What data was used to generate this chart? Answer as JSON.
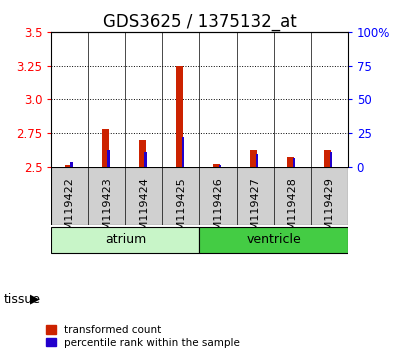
{
  "title": "GDS3625 / 1375132_at",
  "samples": [
    "GSM119422",
    "GSM119423",
    "GSM119424",
    "GSM119425",
    "GSM119426",
    "GSM119427",
    "GSM119428",
    "GSM119429"
  ],
  "red_values": [
    2.51,
    2.78,
    2.7,
    3.25,
    2.52,
    2.62,
    2.57,
    2.62
  ],
  "blue_values": [
    2.53,
    2.62,
    2.61,
    2.72,
    2.51,
    2.59,
    2.56,
    2.61
  ],
  "red_base": 2.5,
  "ylim": [
    2.5,
    3.5
  ],
  "yticks_left": [
    2.5,
    2.75,
    3.0,
    3.25,
    3.5
  ],
  "yticks_right": [
    0,
    25,
    50,
    75,
    100
  ],
  "groups": [
    {
      "label": "atrium",
      "start": 0,
      "end": 4,
      "color_light": "#c8f5c8",
      "color_dark": "#66dd66"
    },
    {
      "label": "ventricle",
      "start": 4,
      "end": 8,
      "color_light": "#44cc44",
      "color_dark": "#44cc44"
    }
  ],
  "tissue_label": "tissue",
  "legend_red": "transformed count",
  "legend_blue": "percentile rank within the sample",
  "red_bar_width": 0.18,
  "blue_bar_width": 0.07,
  "red_color": "#cc2200",
  "blue_color": "#2200cc",
  "bg_color": "#d0d0d0",
  "title_fontsize": 12,
  "tick_fontsize": 8.5,
  "label_fontsize": 9
}
